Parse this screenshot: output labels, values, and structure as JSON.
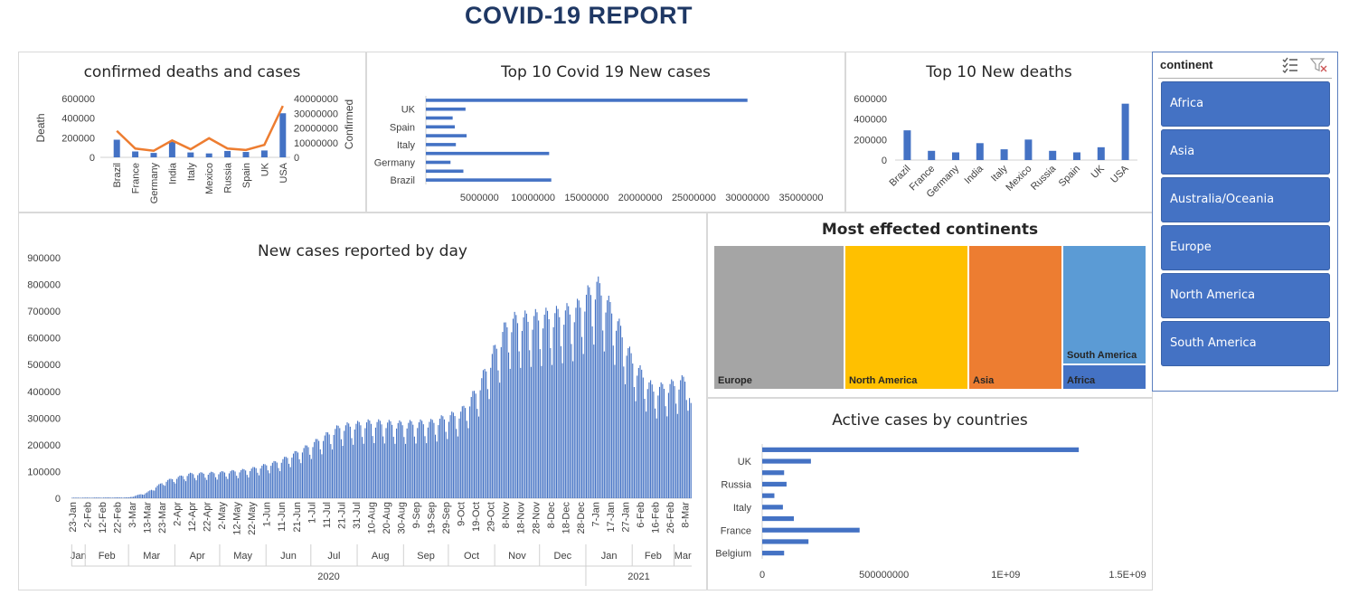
{
  "report_title": "COVID-19 REPORT",
  "colors": {
    "bar": "#4472c4",
    "line": "#ed7d31",
    "title": "#1f3864",
    "slicer_button": "#4472c4"
  },
  "slicer": {
    "header": "continent",
    "icons": [
      "multi-select-icon",
      "clear-filter-icon"
    ],
    "items": [
      "Africa",
      "Asia",
      "Australia/Oceania",
      "Europe",
      "North America",
      "South America"
    ]
  },
  "chart_data": [
    {
      "id": "combo",
      "type": "bar",
      "title": "confirmed deaths and cases",
      "categories": [
        "Brazil",
        "France",
        "Germany",
        "India",
        "Italy",
        "Mexico",
        "Russia",
        "Spain",
        "UK",
        "USA"
      ],
      "series": [
        {
          "name": "Death",
          "type": "bar",
          "axis": "left",
          "values": [
            180000,
            60000,
            45000,
            160000,
            50000,
            40000,
            65000,
            55000,
            70000,
            450000
          ]
        },
        {
          "name": "Confirmed",
          "type": "line",
          "axis": "right",
          "values": [
            18000000,
            6000000,
            4500000,
            11500000,
            5500000,
            13000000,
            6000000,
            5000000,
            8500000,
            35000000
          ]
        }
      ],
      "ylabel": "Death",
      "y2label": "Confirmed",
      "ylim": [
        0,
        600000
      ],
      "y2lim": [
        0,
        40000000
      ],
      "yticks": [
        "600000",
        "400000",
        "200000",
        "0"
      ],
      "y2ticks": [
        "40000000",
        "30000000",
        "20000000",
        "10000000",
        "0"
      ]
    },
    {
      "id": "newcases",
      "type": "bar",
      "orientation": "horizontal",
      "title": "Top 10 Covid 19 New cases",
      "categories": [
        "Brazil",
        "",
        "Germany",
        "",
        "Italy",
        "",
        "Spain",
        "",
        "UK",
        ""
      ],
      "values": [
        11700000,
        3500000,
        2300000,
        11500000,
        2800000,
        3800000,
        2700000,
        2500000,
        3700000,
        30000000
      ],
      "xlim": [
        0,
        35000000
      ],
      "xticks": [
        "5000000",
        "10000000",
        "15000000",
        "20000000",
        "25000000",
        "30000000",
        "35000000"
      ]
    },
    {
      "id": "newdeaths",
      "type": "bar",
      "title": "Top 10 New deaths",
      "categories": [
        "Brazil",
        "France",
        "Germany",
        "India",
        "Italy",
        "Mexico",
        "Russia",
        "Spain",
        "UK",
        "USA"
      ],
      "values": [
        290000,
        90000,
        75000,
        165000,
        105000,
        200000,
        90000,
        75000,
        125000,
        550000
      ],
      "ylim": [
        0,
        600000
      ],
      "yticks": [
        "600000",
        "400000",
        "200000",
        "0"
      ]
    },
    {
      "id": "daily",
      "type": "bar",
      "title": "New cases reported by day",
      "ylim": [
        0,
        900000
      ],
      "yticks": [
        "900000",
        "800000",
        "700000",
        "600000",
        "500000",
        "400000",
        "300000",
        "200000",
        "100000",
        "0"
      ],
      "day_labels": [
        "23-Jan",
        "2-Feb",
        "12-Feb",
        "22-Feb",
        "3-Mar",
        "13-Mar",
        "23-Mar",
        "2-Apr",
        "12-Apr",
        "22-Apr",
        "2-May",
        "12-May",
        "22-May",
        "1-Jun",
        "11-Jun",
        "21-Jun",
        "1-Jul",
        "11-Jul",
        "21-Jul",
        "31-Jul",
        "10-Aug",
        "20-Aug",
        "30-Aug",
        "9-Sep",
        "19-Sep",
        "29-Sep",
        "9-Oct",
        "19-Oct",
        "29-Oct",
        "8-Nov",
        "18-Nov",
        "28-Nov",
        "8-Dec",
        "18-Dec",
        "28-Dec",
        "7-Jan",
        "17-Jan",
        "27-Jan",
        "6-Feb",
        "16-Feb",
        "26-Feb",
        "8-Mar"
      ],
      "months": [
        "Jan",
        "Feb",
        "Mar",
        "Apr",
        "May",
        "Jun",
        "Jul",
        "Aug",
        "Sep",
        "Oct",
        "Nov",
        "Dec",
        "Jan",
        "Feb",
        "Mar"
      ],
      "years": [
        "2020",
        "2021"
      ],
      "trend": {
        "x": [
          "2020-01-23",
          "2020-03-01",
          "2020-03-13",
          "2020-03-25",
          "2020-04-10",
          "2020-05-01",
          "2020-05-20",
          "2020-06-10",
          "2020-06-30",
          "2020-07-20",
          "2020-08-10",
          "2020-08-30",
          "2020-09-19",
          "2020-10-09",
          "2020-10-20",
          "2020-10-30",
          "2020-11-10",
          "2020-11-25",
          "2020-12-10",
          "2020-12-25",
          "2021-01-08",
          "2021-01-20",
          "2021-02-01",
          "2021-02-15",
          "2021-03-01",
          "2021-03-10",
          "2021-03-12"
        ],
        "values": [
          2000,
          3000,
          20000,
          60000,
          85000,
          90000,
          100000,
          130000,
          185000,
          250000,
          265000,
          260000,
          265000,
          300000,
          380000,
          500000,
          620000,
          630000,
          640000,
          660000,
          750000,
          640000,
          480000,
          380000,
          400000,
          420000,
          330000
        ]
      }
    },
    {
      "id": "treemap",
      "type": "heatmap",
      "subtype": "treemap",
      "title": "Most effected continents",
      "categories": [
        "Europe",
        "North America",
        "Asia",
        "South America",
        "Africa"
      ],
      "colors": [
        "#a5a5a5",
        "#ffc000",
        "#ed7d31",
        "#5b9bd5",
        "#4472c4"
      ]
    },
    {
      "id": "active",
      "type": "bar",
      "orientation": "horizontal",
      "title": "Active cases by countries",
      "categories": [
        "Belgium",
        "",
        "France",
        "",
        "Italy",
        "",
        "Russia",
        "",
        "UK",
        ""
      ],
      "values": [
        90000000,
        190000000,
        400000000,
        130000000,
        85000000,
        50000000,
        100000000,
        90000000,
        200000000,
        1300000000
      ],
      "xlim": [
        0,
        1500000000
      ],
      "xticks": [
        "0",
        "500000000",
        "1E+09",
        "1.5E+09"
      ]
    }
  ]
}
